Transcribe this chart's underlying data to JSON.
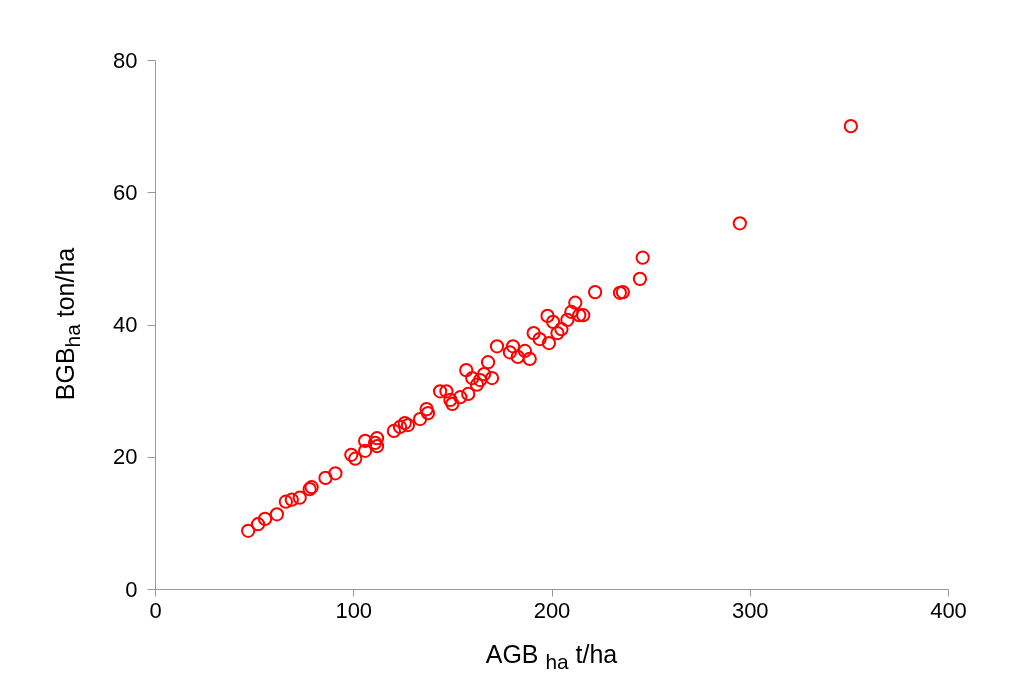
{
  "chart_data": {
    "type": "scatter",
    "xlabel": "AGB $_{ha}$ t/ha",
    "ylabel": "BGB$_{ha}$  ton/ha",
    "xlim": [
      0,
      400
    ],
    "xticks": [
      0,
      100,
      200,
      300,
      400
    ],
    "ylim": [
      0,
      80
    ],
    "yticks": [
      0,
      20,
      40,
      60,
      80
    ],
    "marker": "circle",
    "grid": false,
    "x": [
      47,
      52,
      55.5,
      61.5,
      66,
      69,
      73,
      78,
      79,
      86,
      91,
      99,
      101,
      106,
      106,
      111,
      112,
      112,
      120.5,
      123.6,
      126,
      127.6,
      133.7,
      137,
      137.7,
      143.8,
      147,
      149,
      150,
      154,
      157,
      158,
      160,
      162.4,
      164,
      166,
      168,
      170,
      172.5,
      179,
      180.6,
      183,
      186.6,
      189,
      191,
      194,
      198,
      198.7,
      200.8,
      203,
      205,
      208,
      210,
      212,
      214,
      216,
      222,
      234.5,
      236,
      244.6,
      246,
      295,
      351
    ],
    "series": [
      {
        "color": "#ff0000",
        "values": [
          8.8,
          9.8,
          10.6,
          11.3,
          13.2,
          13.5,
          13.8,
          15.1,
          15.4,
          16.8,
          17.5,
          20.3,
          19.7,
          20.9,
          22.4,
          22.1,
          21.6,
          22.8,
          23.9,
          24.5,
          25.1,
          24.8,
          25.7,
          27.2,
          26.6,
          29.9,
          29.9,
          28.6,
          28,
          29,
          33.1,
          29.5,
          31.9,
          30.9,
          31.6,
          32.5,
          34.3,
          31.9,
          36.7,
          35.8,
          36.7,
          35.1,
          36,
          34.8,
          38.7,
          37.8,
          41.3,
          37.2,
          40.4,
          38.7,
          39.3,
          40.7,
          41.9,
          43.3,
          41.4,
          41.4,
          44.9,
          44.8,
          44.9,
          46.9,
          50.1,
          55.3,
          70
        ]
      }
    ]
  }
}
